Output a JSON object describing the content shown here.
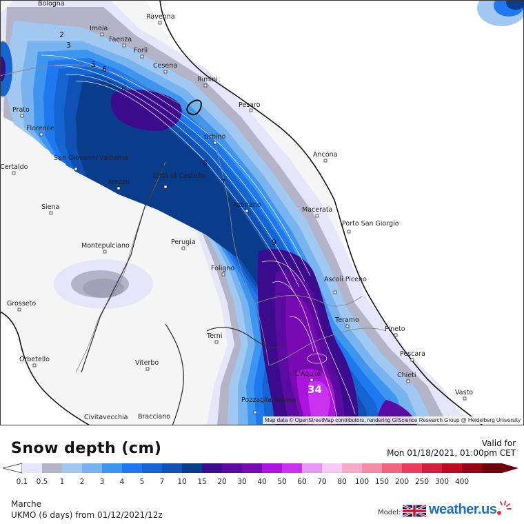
{
  "map": {
    "attribution": "Map data © OpenStreetMap contributors, rendering GIScience Research Group @ Heidelberg University",
    "cities": [
      {
        "name": "Bologna",
        "key": "bologna"
      },
      {
        "name": "Imola",
        "key": "imola"
      },
      {
        "name": "Ravenna",
        "key": "ravenna"
      },
      {
        "name": "Faenza",
        "key": "faenza"
      },
      {
        "name": "Forlì",
        "key": "forli"
      },
      {
        "name": "Cesena",
        "key": "cesena"
      },
      {
        "name": "Rimini",
        "key": "rimini"
      },
      {
        "name": "Pesaro",
        "key": "pesaro"
      },
      {
        "name": "Prato",
        "key": "prato"
      },
      {
        "name": "Florence",
        "key": "florence"
      },
      {
        "name": "Urbino",
        "key": "urbino"
      },
      {
        "name": "Ancona",
        "key": "ancona"
      },
      {
        "name": "San Giovanni Valdarno",
        "key": "sangiovanni"
      },
      {
        "name": "Certaldo",
        "key": "certaldo"
      },
      {
        "name": "Arezzo",
        "key": "arezzo"
      },
      {
        "name": "Città di Castello",
        "key": "cittadicastello"
      },
      {
        "name": "Fabriano",
        "key": "fabriano"
      },
      {
        "name": "Macerata",
        "key": "macerata"
      },
      {
        "name": "Porto San Giorgio",
        "key": "portosangiorgio"
      },
      {
        "name": "Siena",
        "key": "siena"
      },
      {
        "name": "Montepulciano",
        "key": "montepulciano"
      },
      {
        "name": "Perugia",
        "key": "perugia"
      },
      {
        "name": "Foligno",
        "key": "foligno"
      },
      {
        "name": "Ascoli Piceno",
        "key": "ascoli"
      },
      {
        "name": "Grosseto",
        "key": "grosseto"
      },
      {
        "name": "Teramo",
        "key": "teramo"
      },
      {
        "name": "Pineto",
        "key": "pineto"
      },
      {
        "name": "Terni",
        "key": "terni"
      },
      {
        "name": "Pescara",
        "key": "pescara"
      },
      {
        "name": "Orbetello",
        "key": "orbetello"
      },
      {
        "name": "Viterbo",
        "key": "viterbo"
      },
      {
        "name": "L'Aquila",
        "key": "laquila"
      },
      {
        "name": "Chieti",
        "key": "chieti"
      },
      {
        "name": "Pozzaglia Sabina",
        "key": "pozzaglia"
      },
      {
        "name": "Civitavecchia",
        "key": "civitavecchia"
      },
      {
        "name": "Bracciano",
        "key": "bracciano"
      },
      {
        "name": "Vasto",
        "key": "vasto"
      }
    ],
    "contour_labels": [
      "2",
      "3",
      "5",
      "6",
      "8",
      "8",
      "7",
      "9"
    ],
    "max_value_label": "34"
  },
  "legend": {
    "title": "Snow depth (cm)",
    "valid_label": "Valid for",
    "valid_time": "Mon 01/18/2021, 01:00pm CET",
    "scale": [
      {
        "label": "0.1",
        "color": "#e6e6fa"
      },
      {
        "label": "0.5",
        "color": "#b4b4c8"
      },
      {
        "label": "1",
        "color": "#a0c8f0"
      },
      {
        "label": "2",
        "color": "#78b4f0"
      },
      {
        "label": "3",
        "color": "#3c96f0"
      },
      {
        "label": "4",
        "color": "#1e78f0"
      },
      {
        "label": "5",
        "color": "#1464d2"
      },
      {
        "label": "7",
        "color": "#0f50b4"
      },
      {
        "label": "10",
        "color": "#0a3c8c"
      },
      {
        "label": "15",
        "color": "#3c0a8c"
      },
      {
        "label": "20",
        "color": "#5a0aa0"
      },
      {
        "label": "30",
        "color": "#780ab4"
      },
      {
        "label": "40",
        "color": "#aa14dc"
      },
      {
        "label": "50",
        "color": "#c832f0"
      },
      {
        "label": "60",
        "color": "#e696f5"
      },
      {
        "label": "70",
        "color": "#f5c8f5"
      },
      {
        "label": "80",
        "color": "#f5aac8"
      },
      {
        "label": "100",
        "color": "#f58caa"
      },
      {
        "label": "150",
        "color": "#f0647d"
      },
      {
        "label": "200",
        "color": "#e63c5a"
      },
      {
        "label": "250",
        "color": "#d21e3c"
      },
      {
        "label": "300",
        "color": "#be0a1e"
      },
      {
        "label": "400",
        "color": "#960014"
      },
      {
        "label": "",
        "color": "#6e000a"
      }
    ]
  },
  "footer": {
    "region": "Marche",
    "model_info": "UKMO (6 days) from 01/12/2021/12z",
    "model_label": "Model:",
    "brand": "weather.us"
  }
}
